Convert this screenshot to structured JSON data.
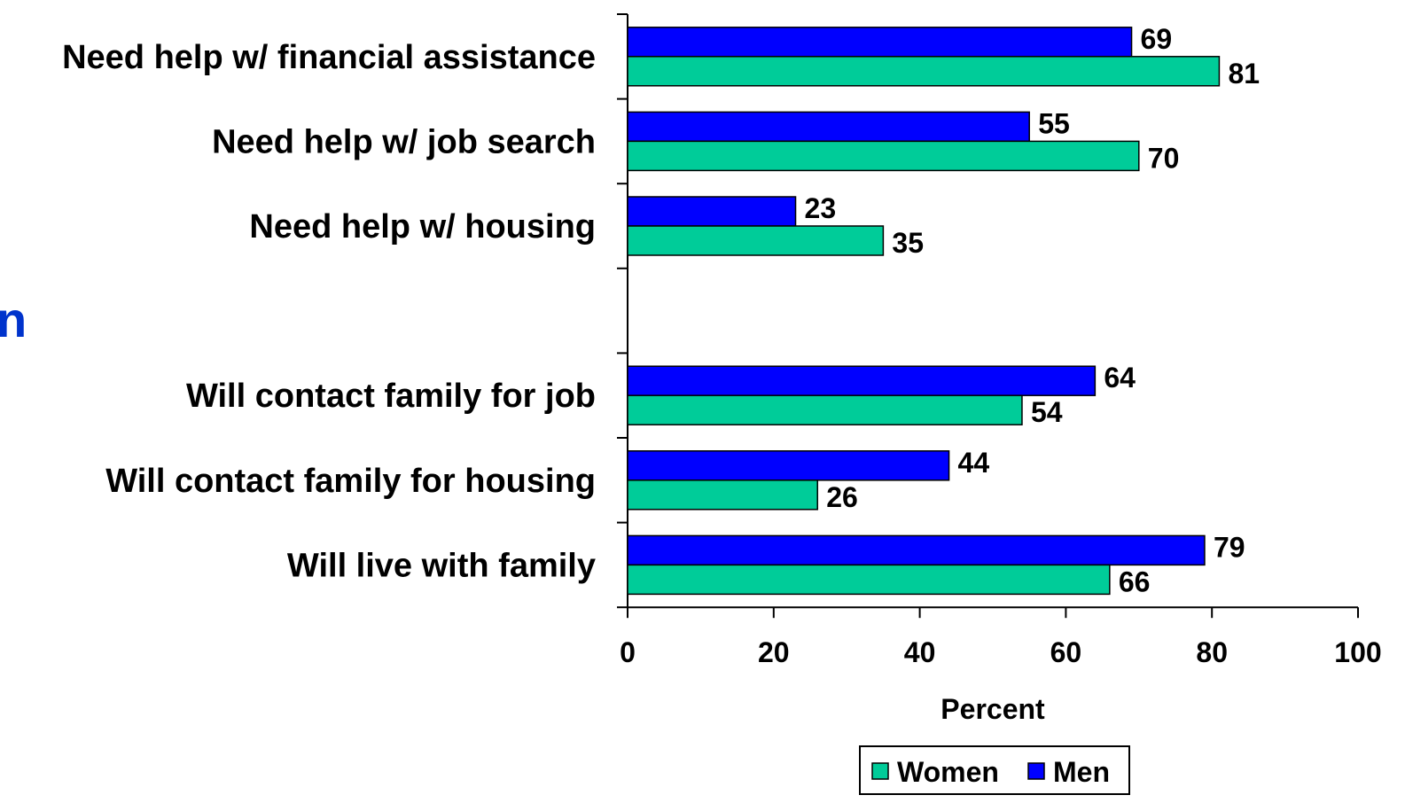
{
  "chart_data": {
    "type": "bar",
    "orientation": "horizontal",
    "categories": [
      "Need help w/ financial assistance",
      "Need help w/ job search",
      "Need help w/ housing",
      "",
      "Will contact family for job",
      "Will contact family for housing",
      "Will live with family"
    ],
    "series": [
      {
        "name": "Men",
        "color": "#0000ff",
        "values": [
          69,
          55,
          23,
          null,
          64,
          44,
          79
        ]
      },
      {
        "name": "Women",
        "color": "#00cc99",
        "values": [
          81,
          70,
          35,
          null,
          54,
          26,
          66
        ]
      }
    ],
    "xlabel": "Percent",
    "xlim": [
      0,
      100
    ],
    "xticks": [
      0,
      20,
      40,
      60,
      80,
      100
    ],
    "grid": false,
    "legend": {
      "position": "bottom",
      "order": [
        "Women",
        "Men"
      ]
    },
    "side_text": "n",
    "side_text_color": "#0033cc"
  }
}
